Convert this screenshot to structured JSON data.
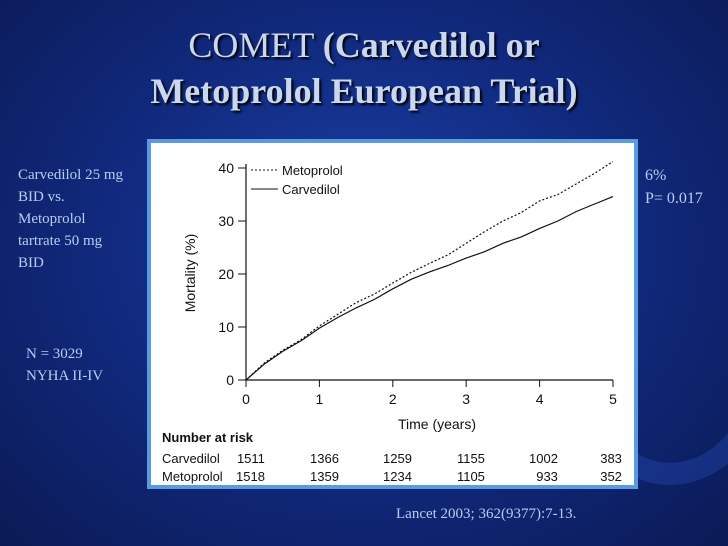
{
  "slide": {
    "title_plain": "COMET",
    "title_bold_line1": "(Carvedilol or",
    "title_bold_line2": "Metoprolol European Trial)",
    "left_note_lines": [
      "Carvedilol 25 mg",
      "BID vs.",
      "Metoprolol",
      "tartrate 50 mg",
      "BID"
    ],
    "n_note_lines": [
      "N = 3029",
      "NYHA II-IV"
    ],
    "right_note_lines": [
      "6%",
      "P= 0.017"
    ],
    "citation": "Lancet 2003; 362(9377):7-13.",
    "colors": {
      "background": "#10287a",
      "text": "#b9cdf0",
      "panel_border": "#5a9ae0"
    }
  },
  "chart_data": {
    "type": "line",
    "xlabel": "Time (years)",
    "ylabel": "Mortality (%)",
    "xlim": [
      0,
      5
    ],
    "ylim": [
      0,
      40
    ],
    "x_ticks": [
      "0",
      "1",
      "2",
      "3",
      "4",
      "5"
    ],
    "y_ticks": [
      "0",
      "10",
      "20",
      "30",
      "40"
    ],
    "legend_position": "top-left",
    "grid": false,
    "series": [
      {
        "name": "Metoprolol",
        "style": "dotted",
        "x": [
          0,
          0.25,
          0.5,
          0.75,
          1,
          1.25,
          1.5,
          1.75,
          2,
          2.25,
          2.5,
          2.75,
          3,
          3.25,
          3.5,
          3.75,
          4,
          4.25,
          4.5,
          4.75,
          5
        ],
        "y": [
          0,
          3.2,
          5.6,
          7.6,
          10.2,
          12.4,
          14.6,
          16.2,
          18.3,
          20.3,
          22.0,
          23.6,
          25.8,
          28.0,
          30.0,
          31.6,
          33.8,
          35.0,
          37.0,
          39.0,
          41.2
        ]
      },
      {
        "name": "Carvedilol",
        "style": "solid",
        "x": [
          0,
          0.25,
          0.5,
          0.75,
          1,
          1.25,
          1.5,
          1.75,
          2,
          2.25,
          2.5,
          2.75,
          3,
          3.25,
          3.5,
          3.75,
          4,
          4.25,
          4.5,
          4.75,
          5
        ],
        "y": [
          0,
          3.0,
          5.4,
          7.4,
          9.8,
          11.8,
          13.6,
          15.2,
          17.2,
          19.0,
          20.4,
          21.6,
          23.0,
          24.2,
          25.8,
          27.0,
          28.6,
          30.0,
          31.8,
          33.2,
          34.6
        ]
      }
    ],
    "number_at_risk": {
      "label": "Number at risk",
      "rows": [
        {
          "name": "Carvedilol",
          "values": [
            "1511",
            "1366",
            "1259",
            "1155",
            "1002",
            "383"
          ]
        },
        {
          "name": "Metoprolol",
          "values": [
            "1518",
            "1359",
            "1234",
            "1105",
            "933",
            "352"
          ]
        }
      ]
    }
  }
}
